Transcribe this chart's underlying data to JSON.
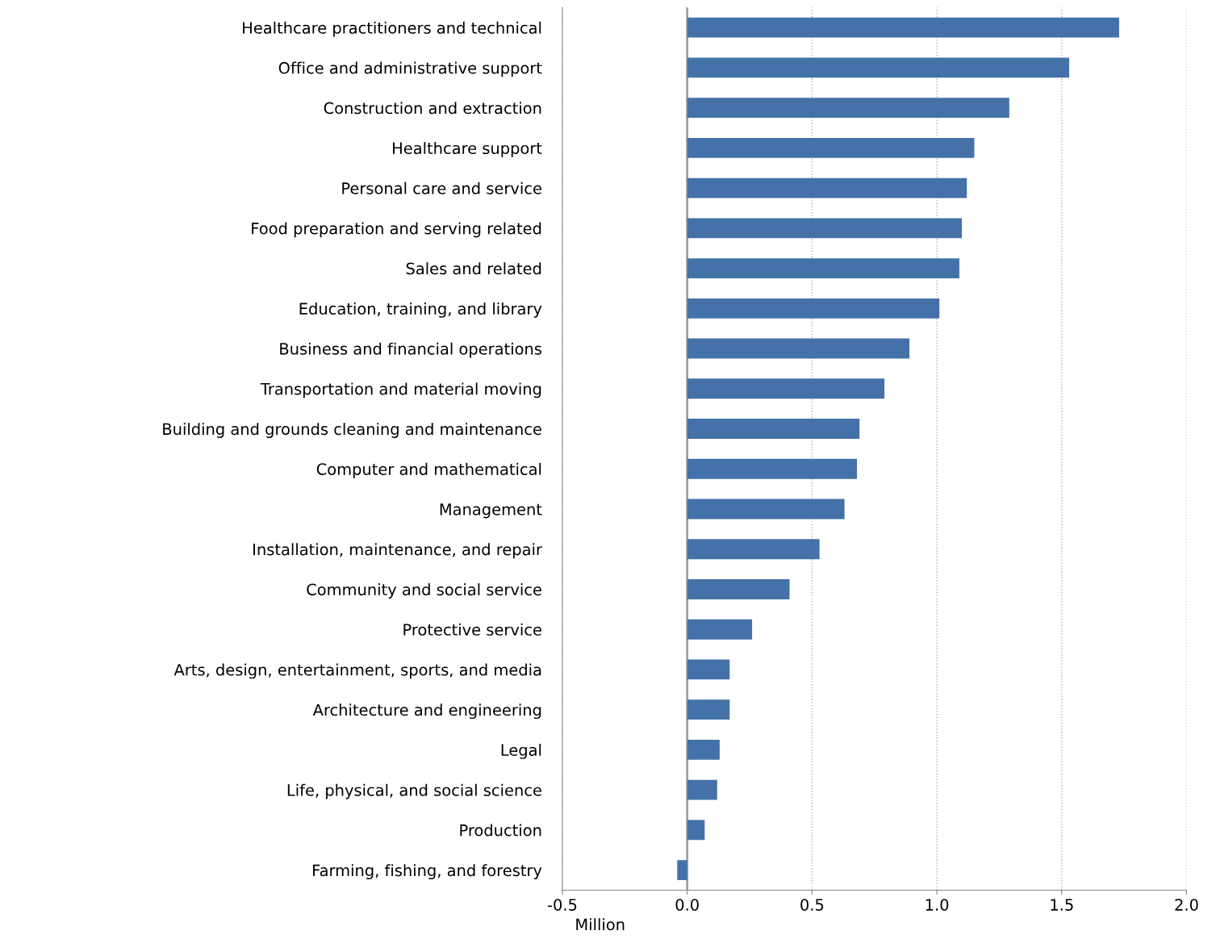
{
  "chart_data": {
    "type": "bar",
    "orientation": "horizontal",
    "xlabel": "Million",
    "categories": [
      "Healthcare practitioners and technical",
      "Office and administrative support",
      "Construction and extraction",
      "Healthcare support",
      "Personal care and service",
      "Food preparation and serving related",
      "Sales and related",
      "Education, training, and library",
      "Business and financial operations",
      "Transportation and material moving",
      "Building and grounds cleaning and maintenance",
      "Computer and mathematical",
      "Management",
      "Installation, maintenance, and repair",
      "Community and social service",
      "Protective service",
      "Arts, design, entertainment, sports, and media",
      "Architecture and engineering",
      "Legal",
      "Life, physical, and social science",
      "Production",
      "Farming, fishing, and forestry"
    ],
    "values": [
      1.73,
      1.53,
      1.29,
      1.15,
      1.12,
      1.1,
      1.09,
      1.01,
      0.89,
      0.79,
      0.69,
      0.68,
      0.63,
      0.53,
      0.41,
      0.26,
      0.17,
      0.17,
      0.13,
      0.12,
      0.07,
      -0.04
    ],
    "color": "#4472a8",
    "xlim": [
      -0.5,
      2.0
    ],
    "xticks": [
      {
        "value": -0.5,
        "label": "-0.5"
      },
      {
        "value": 0,
        "label": "0.0"
      },
      {
        "value": 0.5,
        "label": "0.5"
      },
      {
        "value": 1.0,
        "label": "1.0"
      },
      {
        "value": 1.5,
        "label": "1.5"
      },
      {
        "value": 2.0,
        "label": "2.0"
      }
    ],
    "grid": "x",
    "ref_lines": [
      {
        "axis": "x",
        "value": 0,
        "color": "#a0a0a0"
      }
    ]
  }
}
